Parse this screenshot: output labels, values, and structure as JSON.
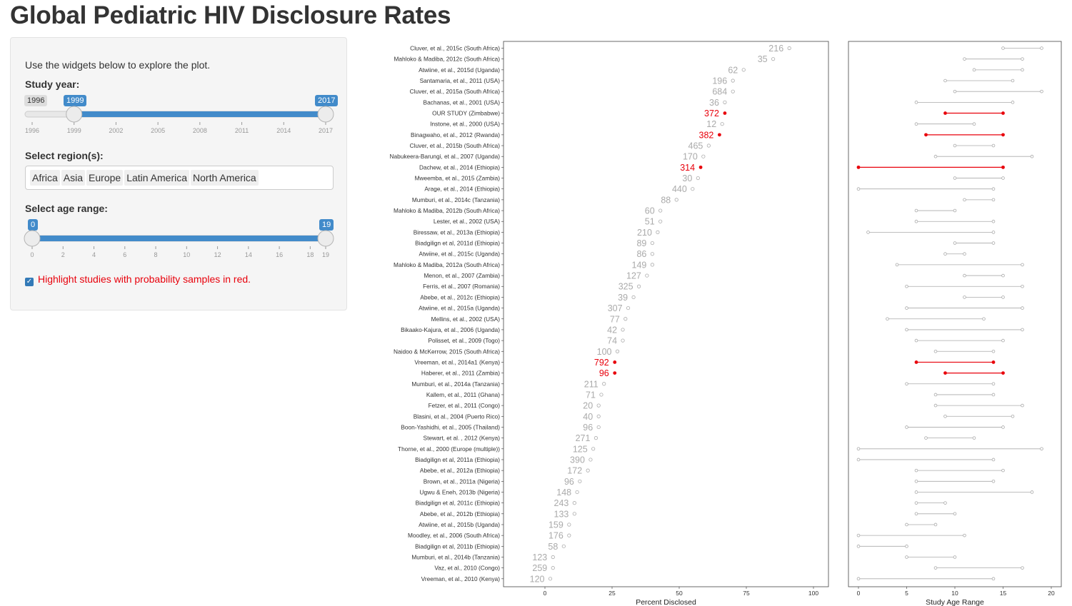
{
  "title": "Global Pediatric HIV Disclosure Rates",
  "sidebar": {
    "intro": "Use the widgets below to explore the plot.",
    "year": {
      "label": "Study year:",
      "min": 1996,
      "max": 2017,
      "from": 1999,
      "to": 2017,
      "min_label": "1996",
      "from_label": "1999",
      "to_label": "2017",
      "ticks": [
        "1996",
        "1999",
        "2002",
        "2005",
        "2008",
        "2011",
        "2014",
        "2017"
      ]
    },
    "region": {
      "label": "Select region(s):",
      "selected": [
        "Africa",
        "Asia",
        "Europe",
        "Latin America",
        "North America"
      ]
    },
    "age": {
      "label": "Select age range:",
      "min": 0,
      "max": 19,
      "from": 0,
      "to": 19,
      "from_label": "0",
      "to_label": "19",
      "ticks": [
        "0",
        "2",
        "4",
        "6",
        "8",
        "10",
        "12",
        "14",
        "16",
        "18",
        "19"
      ]
    },
    "highlight": {
      "label": "Highlight studies with probability samples in red.",
      "checked": true
    }
  },
  "colors": {
    "accent": "#428bca",
    "highlight": "#e8000b",
    "muted": "#aaaaaa"
  },
  "chart_data": [
    {
      "type": "scatter",
      "xlabel": "Percent Disclosed",
      "xlim": [
        0,
        100
      ],
      "xticks": [
        0,
        25,
        50,
        75,
        100
      ],
      "grid": false,
      "series": [
        {
          "study": "Cluver, et al., 2015c (South Africa)",
          "pct": 91,
          "n": "216",
          "highlight": false
        },
        {
          "study": "Mahloko & Madiba, 2012c (South Africa)",
          "pct": 85,
          "n": "35",
          "highlight": false
        },
        {
          "study": "Atwiine, et al., 2015d (Uganda)",
          "pct": 74,
          "n": "62",
          "highlight": false
        },
        {
          "study": "Santamaria, et al., 2011 (USA)",
          "pct": 70,
          "n": "196",
          "highlight": false
        },
        {
          "study": "Cluver, et al., 2015a (South Africa)",
          "pct": 70,
          "n": "684",
          "highlight": false
        },
        {
          "study": "Bachanas, et al., 2001 (USA)",
          "pct": 67,
          "n": "36",
          "highlight": false
        },
        {
          "study": "OUR STUDY (Zimbabwe)",
          "pct": 67,
          "n": "372",
          "highlight": true
        },
        {
          "study": "Instone, et al., 2000 (USA)",
          "pct": 66,
          "n": "12",
          "highlight": false
        },
        {
          "study": "Binagwaho, et al., 2012 (Rwanda)",
          "pct": 65,
          "n": "382",
          "highlight": true
        },
        {
          "study": "Cluver, et al., 2015b (South Africa)",
          "pct": 61,
          "n": "465",
          "highlight": false
        },
        {
          "study": "Nabukeera-Barungi, et al., 2007 (Uganda)",
          "pct": 59,
          "n": "170",
          "highlight": false
        },
        {
          "study": "Dachew, et al., 2014 (Ethiopia)",
          "pct": 58,
          "n": "314",
          "highlight": true
        },
        {
          "study": "Mweemba, et al., 2015 (Zambia)",
          "pct": 57,
          "n": "30",
          "highlight": false
        },
        {
          "study": "Arage, et al., 2014 (Ethiopia)",
          "pct": 55,
          "n": "440",
          "highlight": false
        },
        {
          "study": "Mumburi, et al., 2014c (Tanzania)",
          "pct": 49,
          "n": "88",
          "highlight": false
        },
        {
          "study": "Mahloko & Madiba, 2012b (South Africa)",
          "pct": 43,
          "n": "60",
          "highlight": false
        },
        {
          "study": "Lester, et al., 2002 (USA)",
          "pct": 43,
          "n": "51",
          "highlight": false
        },
        {
          "study": "Biressaw, et al., 2013a (Ethiopia)",
          "pct": 42,
          "n": "210",
          "highlight": false
        },
        {
          "study": "Biadgilign et al, 2011d (Ethiopia)",
          "pct": 40,
          "n": "89",
          "highlight": false
        },
        {
          "study": "Atwiine, et al., 2015c (Uganda)",
          "pct": 40,
          "n": "86",
          "highlight": false
        },
        {
          "study": "Mahloko & Madiba, 2012a (South Africa)",
          "pct": 40,
          "n": "149",
          "highlight": false
        },
        {
          "study": "Menon, et al., 2007 (Zambia)",
          "pct": 38,
          "n": "127",
          "highlight": false
        },
        {
          "study": "Ferris, et al., 2007 (Romania)",
          "pct": 35,
          "n": "325",
          "highlight": false
        },
        {
          "study": "Abebe, et al., 2012c (Ethiopia)",
          "pct": 33,
          "n": "39",
          "highlight": false
        },
        {
          "study": "Atwiine, et al., 2015a (Uganda)",
          "pct": 31,
          "n": "307",
          "highlight": false
        },
        {
          "study": "Mellins, et al., 2002 (USA)",
          "pct": 30,
          "n": "77",
          "highlight": false
        },
        {
          "study": "Bikaako-Kajura, et al., 2006 (Uganda)",
          "pct": 29,
          "n": "42",
          "highlight": false
        },
        {
          "study": "Polisset, et al., 2009 (Togo)",
          "pct": 29,
          "n": "74",
          "highlight": false
        },
        {
          "study": "Naidoo & McKerrow, 2015 (South Africa)",
          "pct": 27,
          "n": "100",
          "highlight": false
        },
        {
          "study": "Vreeman, et al., 2014a1 (Kenya)",
          "pct": 26,
          "n": "792",
          "highlight": true
        },
        {
          "study": "Haberer, et al., 2011 (Zambia)",
          "pct": 26,
          "n": "96",
          "highlight": true
        },
        {
          "study": "Mumburi, et al., 2014a (Tanzania)",
          "pct": 22,
          "n": "211",
          "highlight": false
        },
        {
          "study": "Kallem, et al., 2011 (Ghana)",
          "pct": 21,
          "n": "71",
          "highlight": false
        },
        {
          "study": "Fetzer, et al., 2011 (Congo)",
          "pct": 20,
          "n": "20",
          "highlight": false
        },
        {
          "study": "Blasini, et al., 2004 (Puerto Rico)",
          "pct": 20,
          "n": "40",
          "highlight": false
        },
        {
          "study": "Boon-Yashidhi, et al., 2005 (Thailand)",
          "pct": 20,
          "n": "96",
          "highlight": false
        },
        {
          "study": "Stewart, et al. , 2012 (Kenya)",
          "pct": 19,
          "n": "271",
          "highlight": false
        },
        {
          "study": "Thorne, et al., 2000 (Europe (multiple))",
          "pct": 18,
          "n": "125",
          "highlight": false
        },
        {
          "study": "Biadgilign et al, 2011a (Ethiopia)",
          "pct": 17,
          "n": "390",
          "highlight": false
        },
        {
          "study": "Abebe, et al., 2012a (Ethiopia)",
          "pct": 16,
          "n": "172",
          "highlight": false
        },
        {
          "study": "Brown, et al., 2011a (Nigeria)",
          "pct": 13,
          "n": "96",
          "highlight": false
        },
        {
          "study": "Ugwu & Eneh, 2013b (Nigeria)",
          "pct": 12,
          "n": "148",
          "highlight": false
        },
        {
          "study": "Biadgilign et al, 2011c (Ethiopia)",
          "pct": 11,
          "n": "243",
          "highlight": false
        },
        {
          "study": "Abebe, et al., 2012b (Ethiopia)",
          "pct": 11,
          "n": "133",
          "highlight": false
        },
        {
          "study": "Atwiine, et al., 2015b (Uganda)",
          "pct": 9,
          "n": "159",
          "highlight": false
        },
        {
          "study": "Moodley, et al., 2006 (South Africa)",
          "pct": 9,
          "n": "176",
          "highlight": false
        },
        {
          "study": "Biadgilign et al, 2011b (Ethiopia)",
          "pct": 7,
          "n": "58",
          "highlight": false
        },
        {
          "study": "Mumburi, et al., 2014b (Tanzania)",
          "pct": 3,
          "n": "123",
          "highlight": false
        },
        {
          "study": "Vaz, et al., 2010 (Congo)",
          "pct": 3,
          "n": "259",
          "highlight": false
        },
        {
          "study": "Vreeman, et al., 2010 (Kenya)",
          "pct": 2,
          "n": "120",
          "highlight": false
        }
      ]
    },
    {
      "type": "range",
      "xlabel": "Study Age Range",
      "xlim": [
        0,
        20
      ],
      "xticks": [
        0,
        5,
        10,
        15,
        20
      ],
      "grid": false,
      "ranges": [
        [
          15,
          19
        ],
        [
          11,
          17
        ],
        [
          12,
          17
        ],
        [
          9,
          16
        ],
        [
          10,
          19
        ],
        [
          6,
          16
        ],
        [
          9,
          15
        ],
        [
          6,
          12
        ],
        [
          7,
          15
        ],
        [
          10,
          14
        ],
        [
          8,
          18
        ],
        [
          0,
          15
        ],
        [
          10,
          15
        ],
        [
          0,
          14
        ],
        [
          11,
          14
        ],
        [
          6,
          10
        ],
        [
          6,
          14
        ],
        [
          1,
          14
        ],
        [
          10,
          14
        ],
        [
          9,
          11
        ],
        [
          4,
          17
        ],
        [
          11,
          15
        ],
        [
          5,
          17
        ],
        [
          11,
          15
        ],
        [
          5,
          17
        ],
        [
          3,
          13
        ],
        [
          5,
          17
        ],
        [
          6,
          15
        ],
        [
          8,
          14
        ],
        [
          6,
          14
        ],
        [
          9,
          15
        ],
        [
          5,
          14
        ],
        [
          8,
          14
        ],
        [
          8,
          17
        ],
        [
          9,
          16
        ],
        [
          5,
          15
        ],
        [
          7,
          12
        ],
        [
          0,
          19
        ],
        [
          0,
          14
        ],
        [
          6,
          15
        ],
        [
          6,
          14
        ],
        [
          6,
          18
        ],
        [
          6,
          9
        ],
        [
          6,
          10
        ],
        [
          5,
          8
        ],
        [
          0,
          11
        ],
        [
          0,
          5
        ],
        [
          5,
          10
        ],
        [
          8,
          17
        ],
        [
          0,
          14
        ]
      ]
    }
  ]
}
